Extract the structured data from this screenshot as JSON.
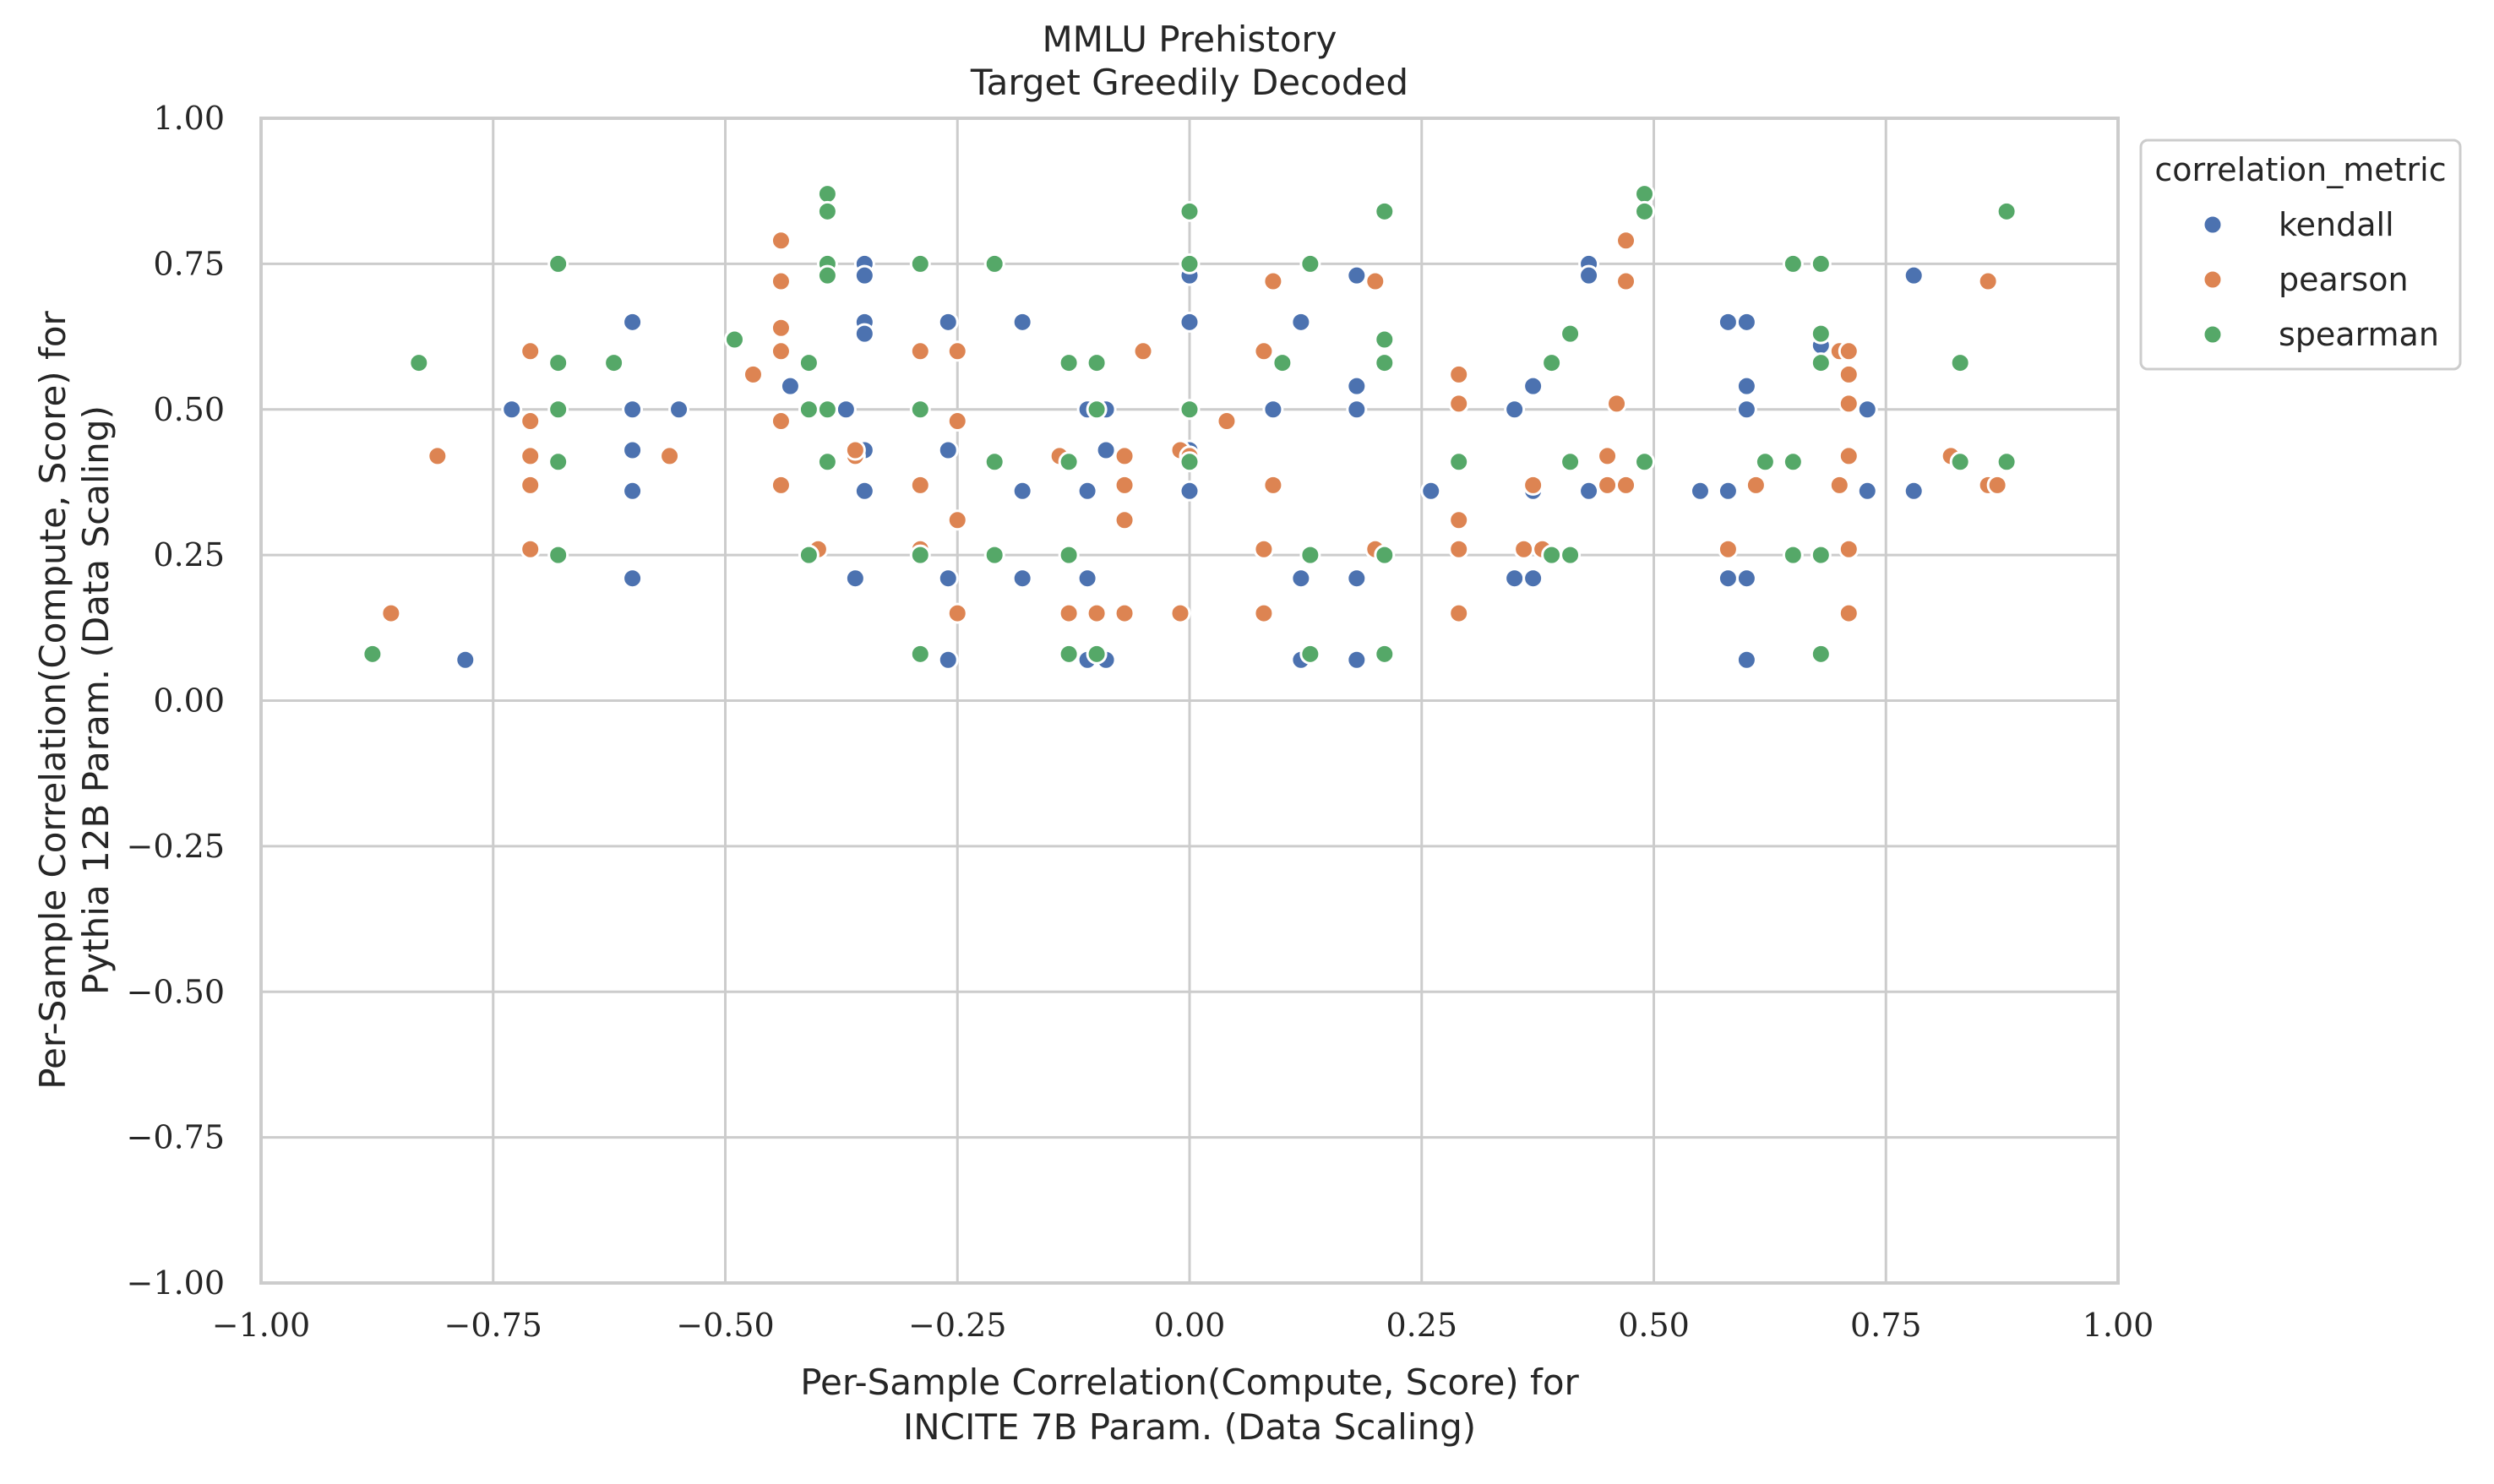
{
  "chart_data": {
    "type": "scatter",
    "title": "MMLU Prehistory",
    "subtitle": "Target Greedily Decoded",
    "xlabel_line1": "Per-Sample Correlation(Compute, Score) for",
    "xlabel_line2": "INCITE 7B Param. (Data Scaling)",
    "ylabel_line1": "Per-Sample Correlation(Compute, Score) for",
    "ylabel_line2": "Pythia 12B Param. (Data Scaling)",
    "xlim": [
      -1.0,
      1.0
    ],
    "ylim": [
      -1.0,
      1.0
    ],
    "xticks": [
      -1.0,
      -0.75,
      -0.5,
      -0.25,
      0.0,
      0.25,
      0.5,
      0.75,
      1.0
    ],
    "yticks": [
      -1.0,
      -0.75,
      -0.5,
      -0.25,
      0.0,
      0.25,
      0.5,
      0.75,
      1.0
    ],
    "xtick_labels": [
      "−1.00",
      "−0.75",
      "−0.50",
      "−0.25",
      "0.00",
      "0.25",
      "0.50",
      "0.75",
      "1.00"
    ],
    "ytick_labels": [
      "−1.00",
      "−0.75",
      "−0.50",
      "−0.25",
      "0.00",
      "0.25",
      "0.50",
      "0.75",
      "1.00"
    ],
    "grid": true,
    "legend": {
      "title": "correlation_metric",
      "placement": "outside-top-right"
    },
    "series": [
      {
        "name": "kendall",
        "color": "#4c72b0",
        "points": [
          [
            -0.78,
            0.07
          ],
          [
            -0.73,
            0.5
          ],
          [
            -0.6,
            0.65
          ],
          [
            -0.6,
            0.5
          ],
          [
            -0.6,
            0.43
          ],
          [
            -0.6,
            0.36
          ],
          [
            -0.6,
            0.21
          ],
          [
            -0.55,
            0.5
          ],
          [
            -0.43,
            0.54
          ],
          [
            -0.37,
            0.5
          ],
          [
            -0.36,
            0.43
          ],
          [
            -0.36,
            0.21
          ],
          [
            -0.35,
            0.75
          ],
          [
            -0.35,
            0.73
          ],
          [
            -0.35,
            0.65
          ],
          [
            -0.35,
            0.63
          ],
          [
            -0.35,
            0.43
          ],
          [
            -0.35,
            0.36
          ],
          [
            -0.26,
            0.65
          ],
          [
            -0.26,
            0.43
          ],
          [
            -0.26,
            0.21
          ],
          [
            -0.26,
            0.07
          ],
          [
            -0.18,
            0.65
          ],
          [
            -0.18,
            0.36
          ],
          [
            -0.18,
            0.21
          ],
          [
            -0.11,
            0.5
          ],
          [
            -0.11,
            0.36
          ],
          [
            -0.11,
            0.21
          ],
          [
            -0.11,
            0.07
          ],
          [
            -0.09,
            0.5
          ],
          [
            -0.09,
            0.43
          ],
          [
            -0.09,
            0.07
          ],
          [
            0.0,
            0.73
          ],
          [
            0.0,
            0.65
          ],
          [
            0.0,
            0.43
          ],
          [
            0.0,
            0.36
          ],
          [
            0.09,
            0.5
          ],
          [
            0.12,
            0.65
          ],
          [
            0.12,
            0.21
          ],
          [
            0.12,
            0.07
          ],
          [
            0.18,
            0.73
          ],
          [
            0.18,
            0.54
          ],
          [
            0.18,
            0.5
          ],
          [
            0.18,
            0.21
          ],
          [
            0.18,
            0.07
          ],
          [
            0.26,
            0.36
          ],
          [
            0.35,
            0.5
          ],
          [
            0.35,
            0.21
          ],
          [
            0.37,
            0.54
          ],
          [
            0.37,
            0.36
          ],
          [
            0.37,
            0.21
          ],
          [
            0.43,
            0.75
          ],
          [
            0.43,
            0.73
          ],
          [
            0.43,
            0.36
          ],
          [
            0.55,
            0.36
          ],
          [
            0.58,
            0.65
          ],
          [
            0.58,
            0.36
          ],
          [
            0.58,
            0.21
          ],
          [
            0.6,
            0.65
          ],
          [
            0.6,
            0.54
          ],
          [
            0.6,
            0.5
          ],
          [
            0.6,
            0.21
          ],
          [
            0.6,
            0.07
          ],
          [
            0.68,
            0.61
          ],
          [
            0.73,
            0.5
          ],
          [
            0.73,
            0.36
          ],
          [
            0.78,
            0.73
          ],
          [
            0.78,
            0.36
          ]
        ]
      },
      {
        "name": "pearson",
        "color": "#dd8452",
        "points": [
          [
            -0.86,
            0.15
          ],
          [
            -0.81,
            0.42
          ],
          [
            -0.71,
            0.6
          ],
          [
            -0.71,
            0.48
          ],
          [
            -0.71,
            0.42
          ],
          [
            -0.71,
            0.37
          ],
          [
            -0.71,
            0.26
          ],
          [
            -0.56,
            0.42
          ],
          [
            -0.47,
            0.56
          ],
          [
            -0.44,
            0.79
          ],
          [
            -0.44,
            0.72
          ],
          [
            -0.44,
            0.64
          ],
          [
            -0.44,
            0.6
          ],
          [
            -0.44,
            0.48
          ],
          [
            -0.44,
            0.37
          ],
          [
            -0.4,
            0.26
          ],
          [
            -0.36,
            0.42
          ],
          [
            -0.36,
            0.43
          ],
          [
            -0.29,
            0.6
          ],
          [
            -0.29,
            0.37
          ],
          [
            -0.29,
            0.26
          ],
          [
            -0.25,
            0.6
          ],
          [
            -0.25,
            0.48
          ],
          [
            -0.25,
            0.31
          ],
          [
            -0.25,
            0.15
          ],
          [
            -0.14,
            0.42
          ],
          [
            -0.13,
            0.15
          ],
          [
            -0.1,
            0.15
          ],
          [
            -0.07,
            0.42
          ],
          [
            -0.07,
            0.37
          ],
          [
            -0.07,
            0.31
          ],
          [
            -0.07,
            0.15
          ],
          [
            -0.05,
            0.6
          ],
          [
            -0.01,
            0.43
          ],
          [
            0.0,
            0.42
          ],
          [
            -0.01,
            0.15
          ],
          [
            0.04,
            0.48
          ],
          [
            0.08,
            0.6
          ],
          [
            0.08,
            0.26
          ],
          [
            0.08,
            0.15
          ],
          [
            0.09,
            0.72
          ],
          [
            0.09,
            0.37
          ],
          [
            0.2,
            0.72
          ],
          [
            0.2,
            0.26
          ],
          [
            0.29,
            0.56
          ],
          [
            0.29,
            0.51
          ],
          [
            0.29,
            0.31
          ],
          [
            0.29,
            0.26
          ],
          [
            0.29,
            0.15
          ],
          [
            0.36,
            0.26
          ],
          [
            0.37,
            0.37
          ],
          [
            0.38,
            0.26
          ],
          [
            0.45,
            0.42
          ],
          [
            0.45,
            0.37
          ],
          [
            0.46,
            0.51
          ],
          [
            0.47,
            0.79
          ],
          [
            0.47,
            0.72
          ],
          [
            0.47,
            0.37
          ],
          [
            0.58,
            0.26
          ],
          [
            0.61,
            0.37
          ],
          [
            0.7,
            0.6
          ],
          [
            0.7,
            0.37
          ],
          [
            0.71,
            0.6
          ],
          [
            0.71,
            0.56
          ],
          [
            0.71,
            0.51
          ],
          [
            0.71,
            0.42
          ],
          [
            0.71,
            0.26
          ],
          [
            0.71,
            0.15
          ],
          [
            0.82,
            0.42
          ],
          [
            0.86,
            0.37
          ],
          [
            0.86,
            0.72
          ],
          [
            0.87,
            0.37
          ]
        ]
      },
      {
        "name": "spearman",
        "color": "#55a868",
        "points": [
          [
            -0.88,
            0.08
          ],
          [
            -0.83,
            0.58
          ],
          [
            -0.68,
            0.75
          ],
          [
            -0.68,
            0.58
          ],
          [
            -0.68,
            0.5
          ],
          [
            -0.68,
            0.41
          ],
          [
            -0.68,
            0.25
          ],
          [
            -0.62,
            0.58
          ],
          [
            -0.49,
            0.62
          ],
          [
            -0.41,
            0.58
          ],
          [
            -0.41,
            0.5
          ],
          [
            -0.41,
            0.25
          ],
          [
            -0.39,
            0.87
          ],
          [
            -0.39,
            0.84
          ],
          [
            -0.39,
            0.75
          ],
          [
            -0.39,
            0.73
          ],
          [
            -0.39,
            0.5
          ],
          [
            -0.39,
            0.41
          ],
          [
            -0.29,
            0.75
          ],
          [
            -0.29,
            0.5
          ],
          [
            -0.29,
            0.25
          ],
          [
            -0.29,
            0.08
          ],
          [
            -0.21,
            0.75
          ],
          [
            -0.21,
            0.41
          ],
          [
            -0.21,
            0.25
          ],
          [
            -0.13,
            0.58
          ],
          [
            -0.13,
            0.41
          ],
          [
            -0.13,
            0.25
          ],
          [
            -0.13,
            0.08
          ],
          [
            -0.1,
            0.58
          ],
          [
            -0.1,
            0.5
          ],
          [
            -0.1,
            0.08
          ],
          [
            0.0,
            0.84
          ],
          [
            0.0,
            0.75
          ],
          [
            0.0,
            0.5
          ],
          [
            0.0,
            0.41
          ],
          [
            0.1,
            0.58
          ],
          [
            0.13,
            0.75
          ],
          [
            0.13,
            0.25
          ],
          [
            0.13,
            0.08
          ],
          [
            0.21,
            0.84
          ],
          [
            0.21,
            0.62
          ],
          [
            0.21,
            0.62
          ],
          [
            0.21,
            0.58
          ],
          [
            0.21,
            0.25
          ],
          [
            0.21,
            0.08
          ],
          [
            0.29,
            0.41
          ],
          [
            0.39,
            0.58
          ],
          [
            0.39,
            0.25
          ],
          [
            0.41,
            0.63
          ],
          [
            0.41,
            0.41
          ],
          [
            0.41,
            0.25
          ],
          [
            0.49,
            0.87
          ],
          [
            0.49,
            0.84
          ],
          [
            0.49,
            0.41
          ],
          [
            0.62,
            0.41
          ],
          [
            0.65,
            0.75
          ],
          [
            0.65,
            0.41
          ],
          [
            0.65,
            0.25
          ],
          [
            0.68,
            0.75
          ],
          [
            0.68,
            0.63
          ],
          [
            0.68,
            0.58
          ],
          [
            0.68,
            0.25
          ],
          [
            0.68,
            0.08
          ],
          [
            0.83,
            0.58
          ],
          [
            0.83,
            0.41
          ],
          [
            0.88,
            0.84
          ],
          [
            0.88,
            0.41
          ]
        ]
      }
    ]
  }
}
